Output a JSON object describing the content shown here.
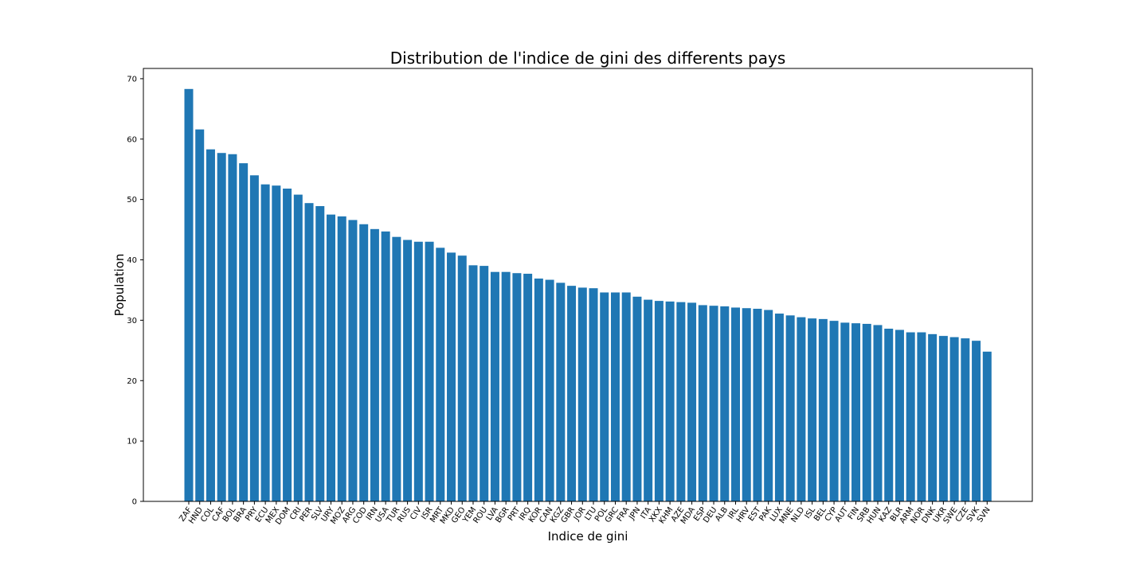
{
  "chart_data": {
    "type": "bar",
    "title": "Distribution de l'indice de gini des differents pays",
    "xlabel": "Indice de gini",
    "ylabel": "Population",
    "ylim": [
      0,
      71.7
    ],
    "yticks": [
      0,
      10,
      20,
      30,
      40,
      50,
      60,
      70
    ],
    "grid": false,
    "bar_color": "#1f77b4",
    "categories": [
      "ZAF",
      "HND",
      "COL",
      "CAF",
      "BOL",
      "BRA",
      "PRY",
      "ECU",
      "MEX",
      "DOM",
      "CRI",
      "PER",
      "SLV",
      "URY",
      "MOZ",
      "ARG",
      "COD",
      "IRN",
      "USA",
      "TUR",
      "RUS",
      "CIV",
      "ISR",
      "MRT",
      "MKD",
      "GEO",
      "YEM",
      "ROU",
      "LVA",
      "BGR",
      "PRT",
      "IRQ",
      "KOR",
      "CAN",
      "KGZ",
      "GBR",
      "JOR",
      "LTU",
      "POL",
      "GRC",
      "FRA",
      "JPN",
      "ITA",
      "XKX",
      "KHM",
      "AZE",
      "MDA",
      "ESP",
      "DEU",
      "ALB",
      "IRL",
      "HRV",
      "EST",
      "PAK",
      "LUX",
      "MNE",
      "NLD",
      "ISL",
      "BEL",
      "CYP",
      "AUT",
      "FIN",
      "SRB",
      "HUN",
      "KAZ",
      "BLR",
      "ARM",
      "NOR",
      "DNK",
      "UKR",
      "SWE",
      "CZE",
      "SVK",
      "SVN"
    ],
    "values": [
      68.3,
      61.6,
      58.3,
      57.7,
      57.5,
      56.0,
      54.0,
      52.5,
      52.3,
      51.8,
      50.8,
      49.4,
      48.9,
      47.5,
      47.2,
      46.6,
      45.9,
      45.1,
      44.7,
      43.8,
      43.3,
      43.0,
      43.0,
      42.0,
      41.2,
      40.7,
      39.1,
      39.0,
      38.0,
      38.0,
      37.8,
      37.7,
      36.9,
      36.7,
      36.2,
      35.7,
      35.4,
      35.3,
      34.6,
      34.6,
      34.6,
      33.9,
      33.4,
      33.2,
      33.1,
      33.0,
      32.9,
      32.5,
      32.4,
      32.3,
      32.1,
      32.0,
      31.9,
      31.7,
      31.1,
      30.8,
      30.5,
      30.3,
      30.2,
      29.9,
      29.6,
      29.5,
      29.4,
      29.2,
      28.6,
      28.4,
      28.0,
      28.0,
      27.7,
      27.4,
      27.2,
      27.0,
      26.6,
      24.8
    ]
  }
}
